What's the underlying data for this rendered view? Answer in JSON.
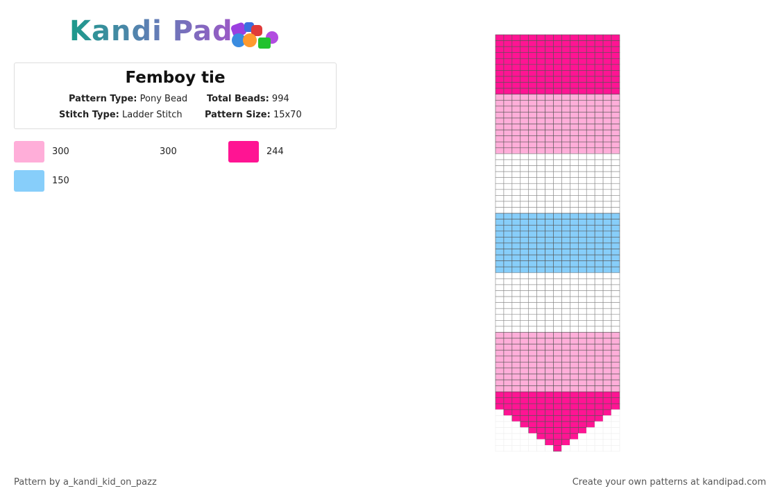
{
  "header": {
    "logo": "Kandi Pad",
    "title": "Femboy tie",
    "pattern_type_label": "Pattern Type:",
    "pattern_type": "Pony Bead",
    "total_beads_label": "Total Beads:",
    "total_beads": 994,
    "stitch_type_label": "Stitch Type:",
    "stitch_type": "Ladder Stitch",
    "pattern_size_label": "Pattern Size:",
    "pattern_size": "15x70"
  },
  "legend": [
    {
      "color": "#ffaed9",
      "count": 300
    },
    {
      "color": "#ffffff",
      "count": 300
    },
    {
      "color": "#ff1493",
      "count": 244
    },
    {
      "color": "#87cefa",
      "count": 150
    }
  ],
  "footer": {
    "credit": "Pattern by a_kandi_kid_on_pazz",
    "cta": "Create your own patterns at kandipad.com"
  }
}
